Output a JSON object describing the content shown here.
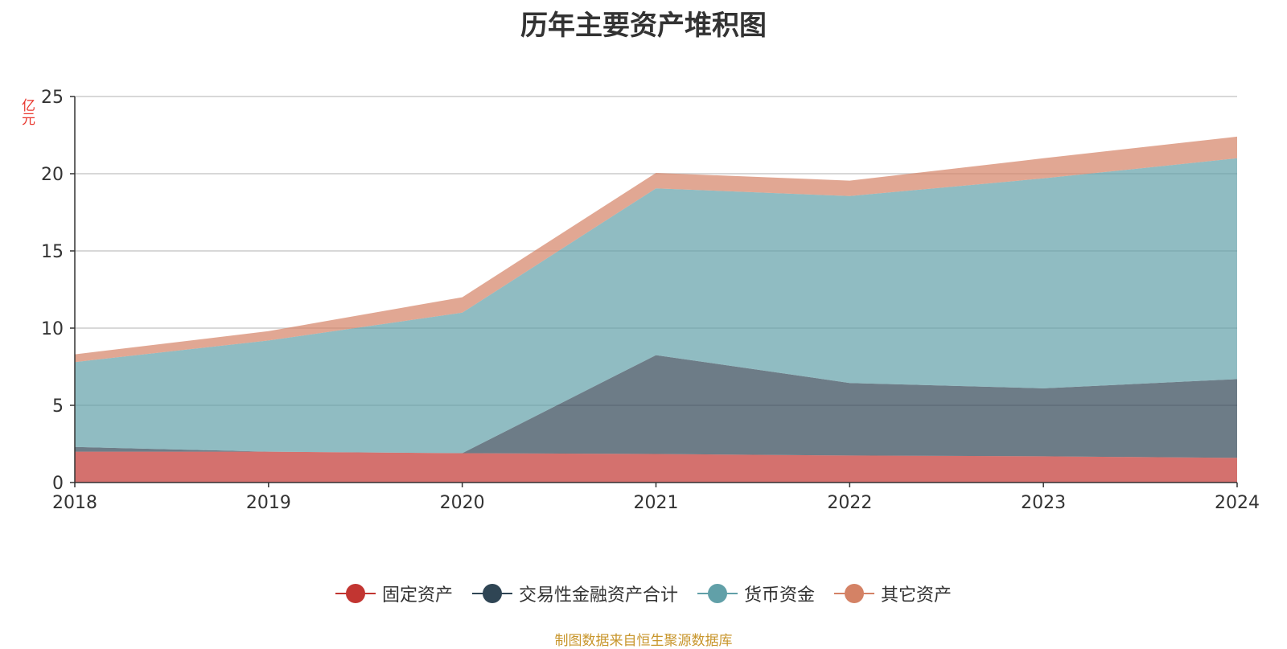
{
  "chart_data": {
    "type": "area",
    "stacked": true,
    "title": "历年主要资产堆积图",
    "y_unit": "亿元",
    "x": [
      "2018",
      "2019",
      "2020",
      "2021",
      "2022",
      "2023",
      "2024"
    ],
    "yticks": [
      "0",
      "5",
      "10",
      "15",
      "20",
      "25"
    ],
    "ylim": [
      0,
      25
    ],
    "grid": true,
    "legend_position": "bottom",
    "series": [
      {
        "name": "固定资产",
        "values": [
          2.0,
          2.0,
          1.9,
          1.85,
          1.75,
          1.7,
          1.6
        ],
        "color": "#c23531"
      },
      {
        "name": "交易性金融资产合计",
        "values": [
          0.3,
          0.0,
          0.0,
          6.4,
          4.7,
          4.4,
          5.1
        ],
        "color": "#2f4554"
      },
      {
        "name": "货币资金",
        "values": [
          5.5,
          7.2,
          9.1,
          10.8,
          12.1,
          13.6,
          14.3
        ],
        "color": "#61a0a8"
      },
      {
        "name": "其它资产",
        "values": [
          0.5,
          0.6,
          1.0,
          1.0,
          1.0,
          1.3,
          1.4
        ],
        "color": "#d48265"
      }
    ],
    "source": "制图数据来自恒生聚源数据库"
  }
}
